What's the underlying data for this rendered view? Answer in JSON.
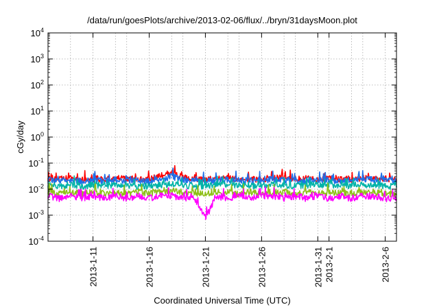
{
  "chart_data": {
    "type": "line",
    "title": "/data/run/goesPlots/archive/2013-02-06/flux/../bryn/31daysMoon.plot",
    "xlabel": "Coordinated Universal Time (UTC)",
    "ylabel": "cGy/day",
    "yscale": "log",
    "ylim": [
      0.0001,
      10000
    ],
    "xlim": [
      "2013-01-07T00:00",
      "2013-02-07T00:00"
    ],
    "grid": true,
    "y_ticks": [
      {
        "base": "10",
        "exp": "4",
        "value": 10000
      },
      {
        "base": "10",
        "exp": "3",
        "value": 1000
      },
      {
        "base": "10",
        "exp": "2",
        "value": 100
      },
      {
        "base": "10",
        "exp": "1",
        "value": 10
      },
      {
        "base": "10",
        "exp": "0",
        "value": 1
      },
      {
        "base": "10",
        "exp": "-1",
        "value": 0.1
      },
      {
        "base": "10",
        "exp": "-2",
        "value": 0.01
      },
      {
        "base": "10",
        "exp": "-3",
        "value": 0.001
      },
      {
        "base": "10",
        "exp": "-4",
        "value": 0.0001
      }
    ],
    "x_ticks": [
      {
        "label": "2013-1-11",
        "date": "2013-01-11"
      },
      {
        "label": "2013-1-16",
        "date": "2013-01-16"
      },
      {
        "label": "2013-1-21",
        "date": "2013-01-21"
      },
      {
        "label": "2013-1-26",
        "date": "2013-01-26"
      },
      {
        "label": "2013-1-31",
        "date": "2013-01-31"
      },
      {
        "label": "2013-2-1",
        "date": "2013-02-01"
      },
      {
        "label": "2013-2-6",
        "date": "2013-02-06"
      }
    ],
    "x": [
      "2013-01-07",
      "2013-01-08",
      "2013-01-09",
      "2013-01-10",
      "2013-01-11",
      "2013-01-12",
      "2013-01-13",
      "2013-01-14",
      "2013-01-15",
      "2013-01-16",
      "2013-01-17",
      "2013-01-18",
      "2013-01-19",
      "2013-01-20",
      "2013-01-21",
      "2013-01-22",
      "2013-01-23",
      "2013-01-24",
      "2013-01-25",
      "2013-01-26",
      "2013-01-27",
      "2013-01-28",
      "2013-01-29",
      "2013-01-30",
      "2013-01-31",
      "2013-02-01",
      "2013-02-02",
      "2013-02-03",
      "2013-02-04",
      "2013-02-05",
      "2013-02-06",
      "2013-02-07"
    ],
    "series": [
      {
        "color": "#ff0000",
        "values": [
          0.025,
          0.022,
          0.024,
          0.021,
          0.023,
          0.022,
          0.025,
          0.022,
          0.023,
          0.021,
          0.03,
          0.04,
          0.025,
          0.022,
          0.021,
          0.023,
          0.024,
          0.022,
          0.023,
          0.022,
          0.025,
          0.024,
          0.022,
          0.023,
          0.022,
          0.024,
          0.023,
          0.022,
          0.025,
          0.024,
          0.023,
          0.022
        ]
      },
      {
        "color": "#1f6fe8",
        "values": [
          0.02,
          0.019,
          0.021,
          0.018,
          0.02,
          0.019,
          0.021,
          0.02,
          0.019,
          0.018,
          0.022,
          0.028,
          0.021,
          0.02,
          0.019,
          0.02,
          0.021,
          0.02,
          0.019,
          0.02,
          0.022,
          0.021,
          0.019,
          0.02,
          0.021,
          0.02,
          0.019,
          0.02,
          0.022,
          0.021,
          0.02,
          0.019
        ]
      },
      {
        "color": "#00b3a8",
        "values": [
          0.013,
          0.012,
          0.014,
          0.012,
          0.013,
          0.012,
          0.014,
          0.013,
          0.012,
          0.012,
          0.013,
          0.015,
          0.013,
          0.012,
          0.012,
          0.013,
          0.014,
          0.013,
          0.012,
          0.013,
          0.014,
          0.013,
          0.012,
          0.013,
          0.014,
          0.013,
          0.012,
          0.013,
          0.014,
          0.013,
          0.012,
          0.012
        ]
      },
      {
        "color": "#8fbf1a",
        "values": [
          0.007,
          0.006,
          0.007,
          0.006,
          0.007,
          0.006,
          0.007,
          0.006,
          0.007,
          0.006,
          0.007,
          0.008,
          0.007,
          0.006,
          0.006,
          0.007,
          0.007,
          0.006,
          0.007,
          0.006,
          0.007,
          0.007,
          0.006,
          0.007,
          0.006,
          0.007,
          0.007,
          0.006,
          0.007,
          0.007,
          0.006,
          0.006
        ]
      },
      {
        "color": "#ff00ff",
        "values": [
          0.005,
          0.004,
          0.005,
          0.004,
          0.005,
          0.004,
          0.005,
          0.004,
          0.005,
          0.004,
          0.005,
          0.005,
          0.004,
          0.004,
          0.0007,
          0.005,
          0.004,
          0.005,
          0.004,
          0.005,
          0.005,
          0.004,
          0.005,
          0.004,
          0.005,
          0.004,
          0.005,
          0.004,
          0.005,
          0.005,
          0.004,
          0.004
        ]
      }
    ]
  }
}
